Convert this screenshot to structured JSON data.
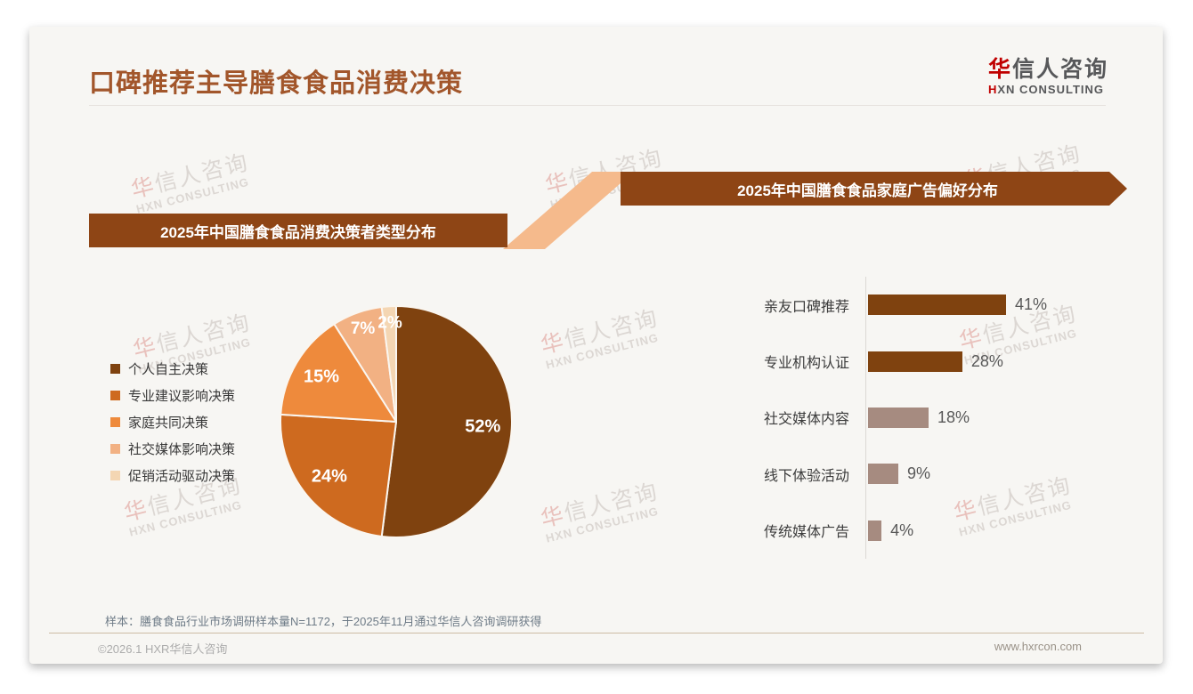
{
  "page": {
    "title": "口碑推荐主导膳食食品消费决策",
    "logo": {
      "brand_first": "华",
      "brand_rest": "信人咨询",
      "subtitle_first": "H",
      "subtitle_rest": "XN CONSULTING"
    },
    "watermark": {
      "line1_first": "华",
      "line1_rest": "信人咨询",
      "line2": "HXN CONSULTING"
    },
    "footnote": "样本：膳食食品行业市场调研样本量N=1172，于2025年11月通过华信人咨询调研获得",
    "footer_left": "©2026.1 HXR华信人咨询",
    "footer_right": "www.hxrcon.com"
  },
  "colors": {
    "title_brown": "#A2562B",
    "banner_brown": "#8E4515",
    "connector_peach": "#F5BA8C",
    "logo_red": "#C00000",
    "bar_dark": "#7F420F",
    "bar_rosy": "#A68B80"
  },
  "chart_data": [
    {
      "type": "pie",
      "title": "2025年中国膳食食品消费决策者类型分布",
      "categories": [
        "个人自主决策",
        "专业建议影响决策",
        "家庭共同决策",
        "社交媒体影响决策",
        "促销活动驱动决策"
      ],
      "values": [
        52,
        24,
        15,
        7,
        2
      ],
      "labels": [
        "52%",
        "24%",
        "15%",
        "7%",
        "2%"
      ],
      "unit": "%",
      "colors": [
        "#7F420F",
        "#CE6A1F",
        "#EE8A3C",
        "#F2B183",
        "#F4D6B3"
      ],
      "start_angle_deg": 0,
      "direction": "clockwise",
      "legend_position": "left"
    },
    {
      "type": "bar",
      "title": "2025年中国膳食食品家庭广告偏好分布",
      "orientation": "horizontal",
      "categories": [
        "亲友口碑推荐",
        "专业机构认证",
        "社交媒体内容",
        "线下体验活动",
        "传统媒体广告"
      ],
      "values": [
        41,
        28,
        18,
        9,
        4
      ],
      "labels": [
        "41%",
        "28%",
        "18%",
        "9%",
        "4%"
      ],
      "unit": "%",
      "bar_colors": [
        "#7F420F",
        "#7F420F",
        "#A68B80",
        "#A68B80",
        "#A68B80"
      ],
      "xlim": [
        0,
        45
      ],
      "grid": "off",
      "axis": "vertical baseline at left of bars"
    }
  ]
}
